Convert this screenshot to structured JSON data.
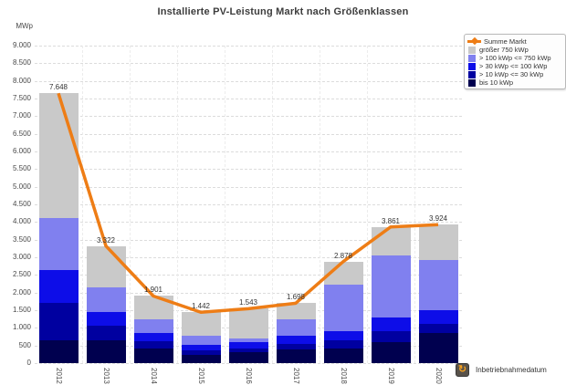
{
  "title": "Installierte PV-Leistung Markt nach Größenklassen",
  "y_axis": {
    "unit": "MWp",
    "min": 0,
    "max": 9000,
    "step": 500
  },
  "legend": [
    {
      "label": "Summe Markt",
      "type": "line",
      "color": "#ee7d16"
    },
    {
      "label": "größer 750 kWp",
      "type": "box",
      "color": "#c9c9c9"
    },
    {
      "label": "> 100 kWp <= 750 kWp",
      "type": "box",
      "color": "#8080ef"
    },
    {
      "label": "> 30 kWp <= 100 kWp",
      "type": "box",
      "color": "#0d0de8"
    },
    {
      "label": "> 10 kWp <= 30 kWp",
      "type": "box",
      "color": "#0000a0"
    },
    {
      "label": "bis 10 kWp",
      "type": "box",
      "color": "#00004f"
    }
  ],
  "chart_data": {
    "type": "bar",
    "stacked": true,
    "title": "Installierte PV-Leistung Markt nach Größenklassen",
    "ylabel": "MWp",
    "ylim": [
      0,
      9000
    ],
    "ytick_step": 500,
    "grid": "dashed-horizontal",
    "legend_position": "top-right",
    "categories": [
      "2012",
      "2013",
      "2014",
      "2015",
      "2016",
      "2017",
      "2018",
      "2019",
      "2020"
    ],
    "series": [
      {
        "name": "bis 10 kWp",
        "color": "#00004f",
        "values": [
          655,
          640,
          420,
          225,
          310,
          380,
          420,
          600,
          855
        ]
      },
      {
        "name": "> 10 kWp <= 30 kWp",
        "color": "#0000a0",
        "values": [
          1060,
          430,
          200,
          130,
          110,
          155,
          220,
          300,
          260
        ]
      },
      {
        "name": "> 30 kWp <= 100 kWp",
        "color": "#0d0de8",
        "values": [
          935,
          375,
          225,
          155,
          175,
          235,
          275,
          390,
          390
        ]
      },
      {
        "name": "> 100 kWp <= 750 kWp",
        "color": "#8080ef",
        "values": [
          1460,
          705,
          395,
          260,
          105,
          475,
          1320,
          1770,
          1430
        ]
      },
      {
        "name": "größer 750 kWp",
        "color": "#c9c9c9",
        "values": [
          3538,
          1172,
          661,
          672,
          843,
          453,
          643,
          801,
          989
        ]
      }
    ],
    "line_series": {
      "name": "Summe Markt",
      "color": "#ee7d16",
      "values": [
        7648,
        3322,
        1901,
        1442,
        1543,
        1698,
        2878,
        3861,
        3924
      ]
    },
    "totals": [
      7648,
      3322,
      1901,
      1442,
      1543,
      1698,
      2878,
      3861,
      3924
    ],
    "total_labels": [
      "7.648",
      "3.322",
      "1.901",
      "1.442",
      "1.543",
      "1.698",
      "2.878",
      "3.861",
      "3.924"
    ]
  },
  "footer": {
    "label": "Inbetriebnahmedatum",
    "icon": "refresh-dimension-icon"
  }
}
